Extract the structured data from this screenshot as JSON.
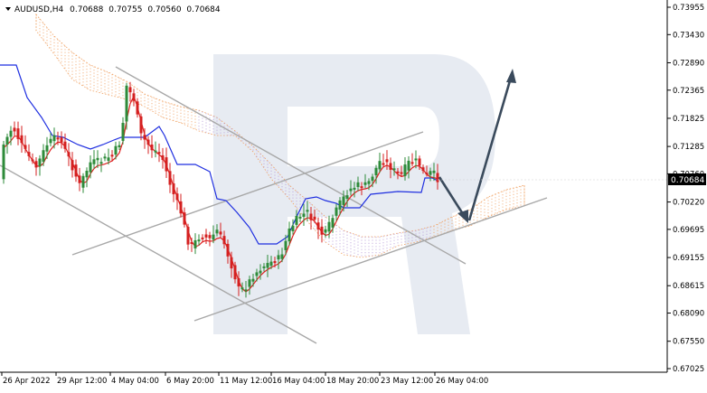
{
  "header": {
    "symbol": "AUDUSD,H4",
    "open": "0.70688",
    "high": "0.70755",
    "low": "0.70560",
    "close": "0.70684"
  },
  "price_label": "0.70684",
  "chart_data": {
    "type": "candlestick",
    "title": "AUDUSD,H4",
    "y_ticks": [
      "0.73955",
      "0.73430",
      "0.72890",
      "0.72365",
      "0.71825",
      "0.71285",
      "0.70760",
      "0.70220",
      "0.69695",
      "0.69155",
      "0.68615",
      "0.68090",
      "0.67550",
      "0.67025"
    ],
    "x_ticks": [
      "26 Apr 2022",
      "29 Apr 12:00",
      "4 May 04:00",
      "6 May 20:00",
      "11 May 12:00",
      "16 May 04:00",
      "18 May 20:00",
      "23 May 12:00",
      "26 May 04:00"
    ],
    "ylim": [
      0.67025,
      0.73955
    ],
    "current_price": 0.70684,
    "colors": {
      "bull": "#2e8b3a",
      "bear": "#d42020",
      "tenkan": "#e02020",
      "kijun": "#1f2fe0",
      "cloud": "#f0a060",
      "channel": "#a8a8a8",
      "forecast": "#3a4a5c"
    }
  }
}
